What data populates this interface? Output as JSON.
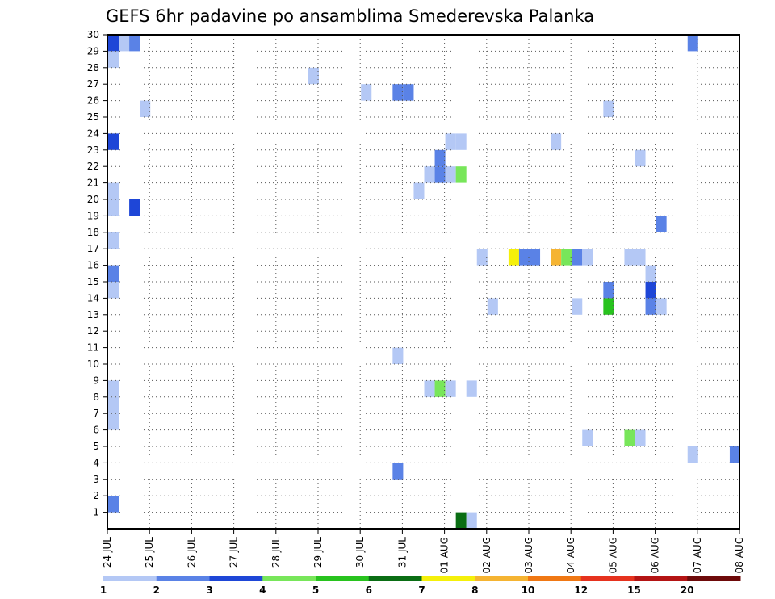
{
  "chart_data": {
    "type": "heatmap",
    "title": "GEFS 6hr padavine po ansamblima Smederevska Palanka",
    "xlabel": "",
    "ylabel": "",
    "x_tick_labels": [
      "24 JUL",
      "25 JUL",
      "26 JUL",
      "27 JUL",
      "28 JUL",
      "29 JUL",
      "30 JUL",
      "31 JUL",
      "01 AUG",
      "02 AUG",
      "03 AUG",
      "04 AUG",
      "05 AUG",
      "06 AUG",
      "07 AUG",
      "08 AUG"
    ],
    "xlim_days": [
      0,
      15
    ],
    "y_tick_labels": [
      "1",
      "2",
      "3",
      "4",
      "5",
      "6",
      "7",
      "8",
      "9",
      "10",
      "11",
      "12",
      "13",
      "14",
      "15",
      "16",
      "17",
      "18",
      "19",
      "20",
      "21",
      "22",
      "23",
      "24",
      "25",
      "26",
      "27",
      "28",
      "29",
      "30"
    ],
    "ylim_members": [
      0,
      30
    ],
    "grid": true,
    "colorbar": {
      "labels": [
        "1",
        "2",
        "3",
        "4",
        "5",
        "6",
        "7",
        "8",
        "10",
        "12",
        "15",
        "20"
      ],
      "colors": [
        "#b4c8f5",
        "#5a82e6",
        "#1e46d7",
        "#78e65a",
        "#28c31e",
        "#0a6e14",
        "#f5f00a",
        "#f5b432",
        "#f07814",
        "#e6321e",
        "#b41414",
        "#6e0a0a"
      ]
    },
    "cells": [
      {
        "day": 0.0,
        "member": 30,
        "c": 2
      },
      {
        "day": 0.25,
        "member": 30,
        "c": 0
      },
      {
        "day": 0.5,
        "member": 30,
        "c": 1
      },
      {
        "day": 13.75,
        "member": 30,
        "c": 1
      },
      {
        "day": 0.0,
        "member": 29,
        "c": 0
      },
      {
        "day": 4.75,
        "member": 28,
        "c": 0
      },
      {
        "day": 6.0,
        "member": 27,
        "c": 0
      },
      {
        "day": 6.75,
        "member": 27,
        "c": 1
      },
      {
        "day": 7.0,
        "member": 27,
        "c": 1
      },
      {
        "day": 0.75,
        "member": 26,
        "c": 0
      },
      {
        "day": 11.75,
        "member": 26,
        "c": 0
      },
      {
        "day": 0.0,
        "member": 24,
        "c": 2
      },
      {
        "day": 8.0,
        "member": 24,
        "c": 0
      },
      {
        "day": 8.25,
        "member": 24,
        "c": 0
      },
      {
        "day": 10.5,
        "member": 24,
        "c": 0
      },
      {
        "day": 7.75,
        "member": 23,
        "c": 1
      },
      {
        "day": 12.5,
        "member": 23,
        "c": 0
      },
      {
        "day": 7.5,
        "member": 22,
        "c": 0
      },
      {
        "day": 7.75,
        "member": 22,
        "c": 1
      },
      {
        "day": 8.0,
        "member": 22,
        "c": 0
      },
      {
        "day": 8.25,
        "member": 22,
        "c": 3
      },
      {
        "day": 0.0,
        "member": 21,
        "c": 0
      },
      {
        "day": 7.25,
        "member": 21,
        "c": 0
      },
      {
        "day": 0.0,
        "member": 20,
        "c": 0
      },
      {
        "day": 0.5,
        "member": 20,
        "c": 2
      },
      {
        "day": 13.0,
        "member": 19,
        "c": 1
      },
      {
        "day": 0.0,
        "member": 18,
        "c": 0
      },
      {
        "day": 8.75,
        "member": 17,
        "c": 0
      },
      {
        "day": 9.5,
        "member": 17,
        "c": 6
      },
      {
        "day": 9.75,
        "member": 17,
        "c": 1
      },
      {
        "day": 10.0,
        "member": 17,
        "c": 1
      },
      {
        "day": 10.5,
        "member": 17,
        "c": 7
      },
      {
        "day": 10.75,
        "member": 17,
        "c": 3
      },
      {
        "day": 11.0,
        "member": 17,
        "c": 1
      },
      {
        "day": 11.25,
        "member": 17,
        "c": 0
      },
      {
        "day": 12.25,
        "member": 17,
        "c": 0
      },
      {
        "day": 12.5,
        "member": 17,
        "c": 0
      },
      {
        "day": 0.0,
        "member": 16,
        "c": 1
      },
      {
        "day": 12.75,
        "member": 16,
        "c": 0
      },
      {
        "day": 0.0,
        "member": 15,
        "c": 0
      },
      {
        "day": 11.75,
        "member": 15,
        "c": 1
      },
      {
        "day": 12.75,
        "member": 15,
        "c": 2
      },
      {
        "day": 9.0,
        "member": 14,
        "c": 0
      },
      {
        "day": 11.0,
        "member": 14,
        "c": 0
      },
      {
        "day": 11.75,
        "member": 14,
        "c": 4
      },
      {
        "day": 12.75,
        "member": 14,
        "c": 1
      },
      {
        "day": 13.0,
        "member": 14,
        "c": 0
      },
      {
        "day": 6.75,
        "member": 11,
        "c": 0
      },
      {
        "day": 7.5,
        "member": 9,
        "c": 0
      },
      {
        "day": 7.75,
        "member": 9,
        "c": 3
      },
      {
        "day": 8.0,
        "member": 9,
        "c": 0
      },
      {
        "day": 8.5,
        "member": 9,
        "c": 0
      },
      {
        "day": 0.0,
        "member": 9,
        "c": 0
      },
      {
        "day": 0.0,
        "member": 8,
        "c": 0
      },
      {
        "day": 0.0,
        "member": 7,
        "c": 0
      },
      {
        "day": 11.25,
        "member": 6,
        "c": 0
      },
      {
        "day": 12.25,
        "member": 6,
        "c": 3
      },
      {
        "day": 12.5,
        "member": 6,
        "c": 0
      },
      {
        "day": 13.75,
        "member": 5,
        "c": 0
      },
      {
        "day": 14.75,
        "member": 5,
        "c": 1
      },
      {
        "day": 6.75,
        "member": 4,
        "c": 1
      },
      {
        "day": 0.0,
        "member": 2,
        "c": 1
      },
      {
        "day": 8.25,
        "member": 1,
        "c": 5
      },
      {
        "day": 8.5,
        "member": 1,
        "c": 0
      }
    ]
  }
}
